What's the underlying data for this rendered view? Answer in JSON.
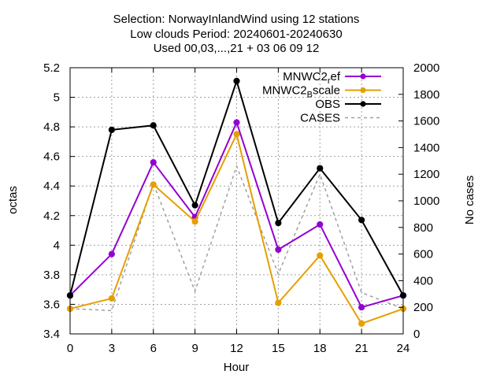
{
  "chart_data": {
    "type": "line",
    "title_lines": [
      "Selection: NorwayInlandWind using    12 stations",
      "Low clouds   Period: 20240601-20240630",
      "Used 00,03,...,21 + 03 06 09 12"
    ],
    "xlabel": "Hour",
    "ylabel": "octas",
    "y2label": "No cases",
    "x": [
      0,
      3,
      6,
      9,
      12,
      15,
      18,
      21,
      24
    ],
    "xticks": [
      "0",
      "3",
      "6",
      "9",
      "12",
      "15",
      "18",
      "21",
      "24"
    ],
    "xlim": [
      0,
      24
    ],
    "ylim": [
      3.4,
      5.2
    ],
    "yticks": [
      "3.4",
      "3.6",
      "3.8",
      "4",
      "4.2",
      "4.4",
      "4.6",
      "4.8",
      "5",
      "5.2"
    ],
    "y2lim": [
      0,
      2000
    ],
    "y2ticks": [
      "0",
      "200",
      "400",
      "600",
      "800",
      "1000",
      "1200",
      "1400",
      "1600",
      "1800",
      "2000"
    ],
    "grid": true,
    "legend_position": "top-right",
    "series": [
      {
        "name": "MNWC2",
        "sub": "r",
        "suffix": "ef",
        "color": "#9400d3",
        "axis": "y",
        "marker": true,
        "dashed": false,
        "values": [
          3.66,
          3.94,
          4.56,
          4.19,
          4.83,
          3.97,
          4.14,
          3.58,
          3.66
        ]
      },
      {
        "name": "MNWC2",
        "sub": "B",
        "suffix": "scale",
        "color": "#e69f00",
        "axis": "y",
        "marker": true,
        "dashed": false,
        "values": [
          3.57,
          3.64,
          4.41,
          4.16,
          4.75,
          3.61,
          3.93,
          3.47,
          3.57
        ]
      },
      {
        "name": "OBS",
        "sub": "",
        "suffix": "",
        "color": "#000000",
        "axis": "y",
        "marker": true,
        "dashed": false,
        "values": [
          3.66,
          4.78,
          4.81,
          4.27,
          5.11,
          4.15,
          4.52,
          4.17,
          3.66
        ]
      },
      {
        "name": "CASES",
        "sub": "",
        "suffix": "",
        "color": "#a0a0a0",
        "axis": "y2",
        "marker": false,
        "dashed": true,
        "values": [
          190,
          175,
          1130,
          320,
          1260,
          450,
          1200,
          310,
          190
        ]
      }
    ]
  }
}
